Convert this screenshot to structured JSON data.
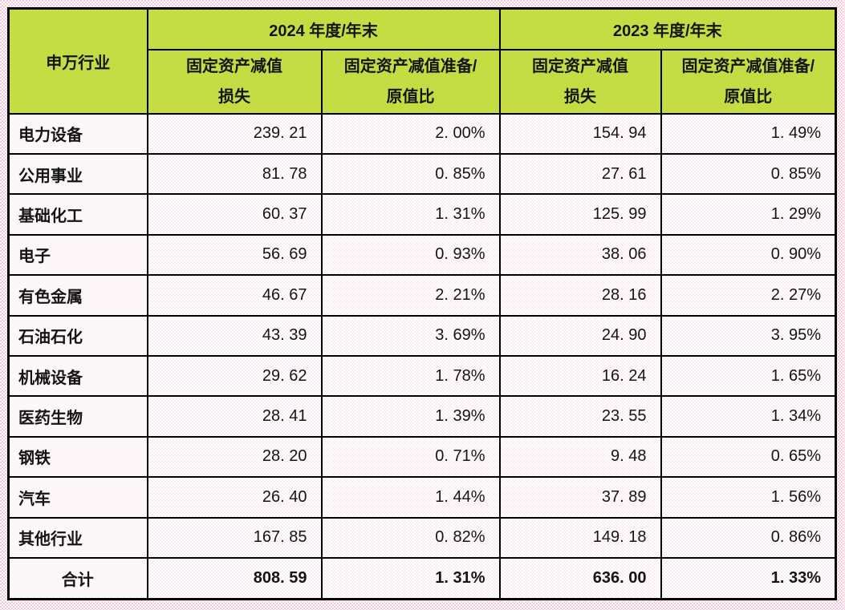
{
  "page": {
    "background_color": "#F6C9DD"
  },
  "table": {
    "colors": {
      "header_fill": "#C6DC43",
      "border": "#000000",
      "cell_fill": "#FDFAFB"
    },
    "corner_header": "申万行业",
    "year_groups": [
      {
        "label": "2024 年度/年末"
      },
      {
        "label": "2023 年度/年末"
      }
    ],
    "sub_headers": [
      {
        "line1": "固定资产减值",
        "line2": "损失"
      },
      {
        "line1": "固定资产减值准备/",
        "line2": "原值比"
      },
      {
        "line1": "固定资产减值",
        "line2": "损失"
      },
      {
        "line1": "固定资产减值准备/",
        "line2": "原值比"
      }
    ],
    "rows": [
      {
        "industry": "电力设备",
        "loss_2024": "239. 21",
        "ratio_2024": "2. 00%",
        "loss_2023": "154. 94",
        "ratio_2023": "1. 49%"
      },
      {
        "industry": "公用事业",
        "loss_2024": "81. 78",
        "ratio_2024": "0. 85%",
        "loss_2023": "27. 61",
        "ratio_2023": "0. 85%"
      },
      {
        "industry": "基础化工",
        "loss_2024": "60. 37",
        "ratio_2024": "1. 31%",
        "loss_2023": "125. 99",
        "ratio_2023": "1. 29%"
      },
      {
        "industry": "电子",
        "loss_2024": "56. 69",
        "ratio_2024": "0. 93%",
        "loss_2023": "38. 06",
        "ratio_2023": "0. 90%"
      },
      {
        "industry": "有色金属",
        "loss_2024": "46. 67",
        "ratio_2024": "2. 21%",
        "loss_2023": "28. 16",
        "ratio_2023": "2. 27%"
      },
      {
        "industry": "石油石化",
        "loss_2024": "43. 39",
        "ratio_2024": "3. 69%",
        "loss_2023": "24. 90",
        "ratio_2023": "3. 95%"
      },
      {
        "industry": "机械设备",
        "loss_2024": "29. 62",
        "ratio_2024": "1. 78%",
        "loss_2023": "16. 24",
        "ratio_2023": "1. 65%"
      },
      {
        "industry": "医药生物",
        "loss_2024": "28. 41",
        "ratio_2024": "1. 39%",
        "loss_2023": "23. 55",
        "ratio_2023": "1. 34%"
      },
      {
        "industry": "钢铁",
        "loss_2024": "28. 20",
        "ratio_2024": "0. 71%",
        "loss_2023": "9. 48",
        "ratio_2023": "0. 65%"
      },
      {
        "industry": "汽车",
        "loss_2024": "26. 40",
        "ratio_2024": "1. 44%",
        "loss_2023": "37. 89",
        "ratio_2023": "1. 56%"
      },
      {
        "industry": "其他行业",
        "loss_2024": "167. 85",
        "ratio_2024": "0. 82%",
        "loss_2023": "149. 18",
        "ratio_2023": "0. 86%"
      }
    ],
    "total_row": {
      "industry": "合计",
      "loss_2024": "808. 59",
      "ratio_2024": "1. 31%",
      "loss_2023": "636. 00",
      "ratio_2023": "1. 33%"
    }
  }
}
